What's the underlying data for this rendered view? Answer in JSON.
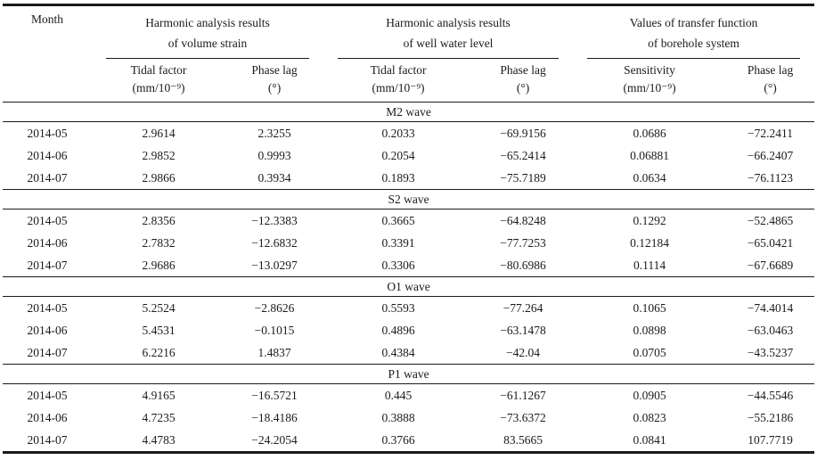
{
  "table": {
    "month_header": "Month",
    "groups": [
      {
        "line1": "Harmonic analysis results",
        "line2": "of volume strain",
        "col1": "Tidal factor",
        "col1_unit": "(mm/10⁻⁹)",
        "col2": "Phase lag",
        "col2_unit": "(°)"
      },
      {
        "line1": "Harmonic analysis results",
        "line2": "of well water level",
        "col1": "Tidal factor",
        "col1_unit": "(mm/10⁻⁹)",
        "col2": "Phase lag",
        "col2_unit": "(°)"
      },
      {
        "line1": "Values of transfer function",
        "line2": "of borehole system",
        "col1": "Sensitivity",
        "col1_unit": "(mm/10⁻⁹)",
        "col2": "Phase lag",
        "col2_unit": "(°)"
      }
    ],
    "sections": [
      {
        "label": "M2 wave",
        "rows": [
          {
            "month": "2014-05",
            "values": [
              "2.9614",
              "2.3255",
              "0.2033",
              "−69.9156",
              "0.0686",
              "−72.2411"
            ]
          },
          {
            "month": "2014-06",
            "values": [
              "2.9852",
              "0.9993",
              "0.2054",
              "−65.2414",
              "0.06881",
              "−66.2407"
            ]
          },
          {
            "month": "2014-07",
            "values": [
              "2.9866",
              "0.3934",
              "0.1893",
              "−75.7189",
              "0.0634",
              "−76.1123"
            ]
          }
        ]
      },
      {
        "label": "S2 wave",
        "rows": [
          {
            "month": "2014-05",
            "values": [
              "2.8356",
              "−12.3383",
              "0.3665",
              "−64.8248",
              "0.1292",
              "−52.4865"
            ]
          },
          {
            "month": "2014-06",
            "values": [
              "2.7832",
              "−12.6832",
              "0.3391",
              "−77.7253",
              "0.12184",
              "−65.0421"
            ]
          },
          {
            "month": "2014-07",
            "values": [
              "2.9686",
              "−13.0297",
              "0.3306",
              "−80.6986",
              "0.1114",
              "−67.6689"
            ]
          }
        ]
      },
      {
        "label": "O1 wave",
        "rows": [
          {
            "month": "2014-05",
            "values": [
              "5.2524",
              "−2.8626",
              "0.5593",
              "−77.264",
              "0.1065",
              "−74.4014"
            ]
          },
          {
            "month": "2014-06",
            "values": [
              "5.4531",
              "−0.1015",
              "0.4896",
              "−63.1478",
              "0.0898",
              "−63.0463"
            ]
          },
          {
            "month": "2014-07",
            "values": [
              "6.2216",
              "1.4837",
              "0.4384",
              "−42.04",
              "0.0705",
              "−43.5237"
            ]
          }
        ]
      },
      {
        "label": "P1 wave",
        "rows": [
          {
            "month": "2014-05",
            "values": [
              "4.9165",
              "−16.5721",
              "0.445",
              "−61.1267",
              "0.0905",
              "−44.5546"
            ]
          },
          {
            "month": "2014-06",
            "values": [
              "4.7235",
              "−18.4186",
              "0.3888",
              "−73.6372",
              "0.0823",
              "−55.2186"
            ]
          },
          {
            "month": "2014-07",
            "values": [
              "4.4783",
              "−24.2054",
              "0.3766",
              "83.5665",
              "0.0841",
              "107.7719"
            ]
          }
        ]
      }
    ]
  }
}
